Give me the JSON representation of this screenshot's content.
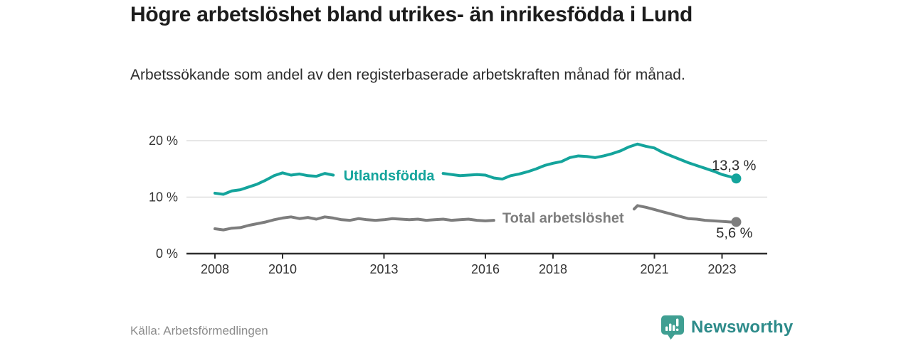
{
  "header": {
    "title": "Högre arbetslöshet bland utrikes- än inrikesfödda i Lund",
    "subtitle": "Arbetssökande som andel av den registerbaserade arbetskraften månad för månad."
  },
  "footer": {
    "source": "Källa: Arbetsförmedlingen",
    "brand": "Newsworthy"
  },
  "colors": {
    "teal": "#14a49c",
    "gray": "#7d7d7d",
    "axis": "#2e2e2e",
    "grid": "#dddddd",
    "tick_text": "#333333",
    "value_text": "#2b2b2b",
    "logo_icon": "#3f9f92",
    "logo_text": "#2d8b8a"
  },
  "chart_data": {
    "type": "line",
    "x_unit": "year (monthly data)",
    "y_unit": "percent",
    "xlim": [
      2008,
      2023.9
    ],
    "ylim": [
      0,
      21.5
    ],
    "grid": "horizontal",
    "legend_position": "inline-on-line",
    "x_ticks": [
      {
        "value": 2008,
        "label": "2008"
      },
      {
        "value": 2010,
        "label": "2010"
      },
      {
        "value": 2013,
        "label": "2013"
      },
      {
        "value": 2016,
        "label": "2016"
      },
      {
        "value": 2018,
        "label": "2018"
      },
      {
        "value": 2021,
        "label": "2021"
      },
      {
        "value": 2023,
        "label": "2023"
      }
    ],
    "y_ticks": [
      {
        "value": 0,
        "label": "0 %"
      },
      {
        "value": 10,
        "label": "10 %"
      },
      {
        "value": 20,
        "label": "20 %"
      }
    ],
    "series": [
      {
        "name": "Utlandsfödda",
        "color": "#14a49c",
        "end_label": "13,3 %",
        "end_value": 13.3,
        "value_label_side": "above",
        "label_pos": {
          "year": 2013.15,
          "pct": 13.85
        },
        "label_gap": [
          2011.6,
          2014.7
        ],
        "points": [
          [
            2008.0,
            10.7
          ],
          [
            2008.25,
            10.5
          ],
          [
            2008.5,
            11.1
          ],
          [
            2008.75,
            11.3
          ],
          [
            2009.0,
            11.8
          ],
          [
            2009.25,
            12.3
          ],
          [
            2009.5,
            13.0
          ],
          [
            2009.75,
            13.8
          ],
          [
            2010.0,
            14.3
          ],
          [
            2010.25,
            13.9
          ],
          [
            2010.5,
            14.1
          ],
          [
            2010.75,
            13.8
          ],
          [
            2011.0,
            13.7
          ],
          [
            2011.25,
            14.2
          ],
          [
            2011.5,
            13.9
          ],
          [
            2011.75,
            13.7
          ],
          [
            2012.0,
            13.6
          ],
          [
            2012.25,
            13.8
          ],
          [
            2012.5,
            13.6
          ],
          [
            2012.75,
            13.5
          ],
          [
            2013.0,
            13.7
          ],
          [
            2013.25,
            13.9
          ],
          [
            2013.5,
            13.8
          ],
          [
            2013.75,
            14.0
          ],
          [
            2014.0,
            14.1
          ],
          [
            2014.25,
            13.9
          ],
          [
            2014.5,
            14.0
          ],
          [
            2014.75,
            14.2
          ],
          [
            2015.0,
            14.0
          ],
          [
            2015.25,
            13.8
          ],
          [
            2015.5,
            13.9
          ],
          [
            2015.75,
            14.0
          ],
          [
            2016.0,
            13.9
          ],
          [
            2016.25,
            13.4
          ],
          [
            2016.5,
            13.2
          ],
          [
            2016.75,
            13.8
          ],
          [
            2017.0,
            14.1
          ],
          [
            2017.25,
            14.5
          ],
          [
            2017.5,
            15.0
          ],
          [
            2017.75,
            15.6
          ],
          [
            2018.0,
            16.0
          ],
          [
            2018.25,
            16.3
          ],
          [
            2018.5,
            17.0
          ],
          [
            2018.75,
            17.3
          ],
          [
            2019.0,
            17.2
          ],
          [
            2019.25,
            17.0
          ],
          [
            2019.5,
            17.3
          ],
          [
            2019.75,
            17.7
          ],
          [
            2020.0,
            18.2
          ],
          [
            2020.25,
            18.9
          ],
          [
            2020.5,
            19.4
          ],
          [
            2020.75,
            19.0
          ],
          [
            2021.0,
            18.7
          ],
          [
            2021.25,
            17.9
          ],
          [
            2021.5,
            17.3
          ],
          [
            2021.75,
            16.7
          ],
          [
            2022.0,
            16.1
          ],
          [
            2022.25,
            15.6
          ],
          [
            2022.5,
            15.1
          ],
          [
            2022.75,
            14.6
          ],
          [
            2023.0,
            14.0
          ],
          [
            2023.25,
            13.6
          ],
          [
            2023.42,
            13.3
          ]
        ]
      },
      {
        "name": "Total arbetslöshet",
        "color": "#7d7d7d",
        "end_label": "5,6 %",
        "end_value": 5.6,
        "value_label_side": "below",
        "label_pos": {
          "year": 2018.3,
          "pct": 6.35
        },
        "label_gap": [
          2016.3,
          2020.38
        ],
        "points": [
          [
            2008.0,
            4.4
          ],
          [
            2008.25,
            4.2
          ],
          [
            2008.5,
            4.5
          ],
          [
            2008.75,
            4.6
          ],
          [
            2009.0,
            5.0
          ],
          [
            2009.25,
            5.3
          ],
          [
            2009.5,
            5.6
          ],
          [
            2009.75,
            6.0
          ],
          [
            2010.0,
            6.3
          ],
          [
            2010.25,
            6.5
          ],
          [
            2010.5,
            6.2
          ],
          [
            2010.75,
            6.4
          ],
          [
            2011.0,
            6.1
          ],
          [
            2011.25,
            6.5
          ],
          [
            2011.5,
            6.3
          ],
          [
            2011.75,
            6.0
          ],
          [
            2012.0,
            5.9
          ],
          [
            2012.25,
            6.2
          ],
          [
            2012.5,
            6.0
          ],
          [
            2012.75,
            5.9
          ],
          [
            2013.0,
            6.0
          ],
          [
            2013.25,
            6.2
          ],
          [
            2013.5,
            6.1
          ],
          [
            2013.75,
            6.0
          ],
          [
            2014.0,
            6.1
          ],
          [
            2014.25,
            5.9
          ],
          [
            2014.5,
            6.0
          ],
          [
            2014.75,
            6.1
          ],
          [
            2015.0,
            5.9
          ],
          [
            2015.25,
            6.0
          ],
          [
            2015.5,
            6.1
          ],
          [
            2015.75,
            5.9
          ],
          [
            2016.0,
            5.8
          ],
          [
            2016.25,
            5.9
          ],
          [
            2016.5,
            6.0
          ],
          [
            2016.75,
            5.9
          ],
          [
            2017.0,
            6.0
          ],
          [
            2017.25,
            6.1
          ],
          [
            2017.5,
            6.0
          ],
          [
            2017.75,
            6.1
          ],
          [
            2018.0,
            6.2
          ],
          [
            2018.25,
            6.3
          ],
          [
            2018.5,
            6.2
          ],
          [
            2018.75,
            6.3
          ],
          [
            2019.0,
            6.4
          ],
          [
            2019.25,
            6.5
          ],
          [
            2019.5,
            6.6
          ],
          [
            2019.75,
            6.8
          ],
          [
            2020.0,
            7.2
          ],
          [
            2020.25,
            7.6
          ],
          [
            2020.4,
            7.9
          ],
          [
            2020.5,
            8.5
          ],
          [
            2020.75,
            8.2
          ],
          [
            2021.0,
            7.8
          ],
          [
            2021.25,
            7.4
          ],
          [
            2021.5,
            7.0
          ],
          [
            2021.75,
            6.6
          ],
          [
            2022.0,
            6.2
          ],
          [
            2022.25,
            6.1
          ],
          [
            2022.5,
            5.9
          ],
          [
            2022.75,
            5.8
          ],
          [
            2023.0,
            5.7
          ],
          [
            2023.25,
            5.6
          ],
          [
            2023.42,
            5.6
          ]
        ]
      }
    ]
  }
}
